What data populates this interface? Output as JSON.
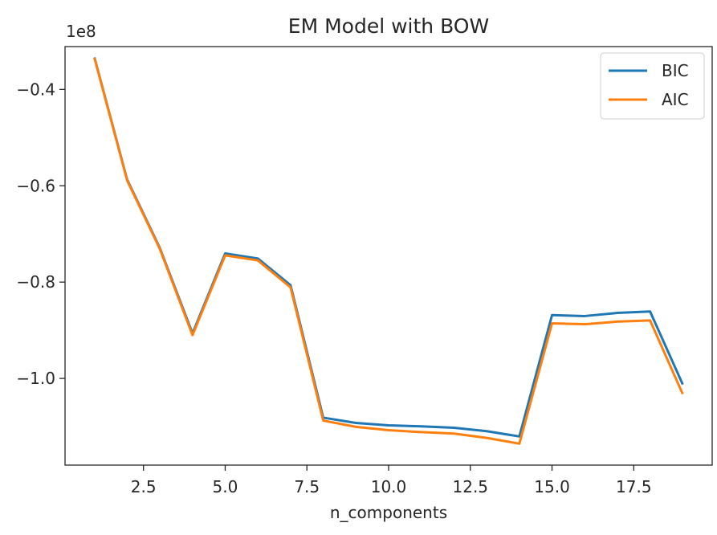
{
  "chart_data": {
    "type": "line",
    "title": "EM Model with BOW",
    "xlabel": "n_components",
    "ylabel": "",
    "y_offset_text": "1e8",
    "x": [
      1,
      2,
      3,
      4,
      5,
      6,
      7,
      8,
      9,
      10,
      11,
      12,
      13,
      14,
      15,
      16,
      17,
      18,
      19
    ],
    "xlim": [
      0.1,
      19.9
    ],
    "ylim": [
      -1.18,
      -0.311
    ],
    "x_ticks": [
      2.5,
      5.0,
      7.5,
      10.0,
      12.5,
      15.0,
      17.5
    ],
    "x_tick_labels": [
      "2.5",
      "5.0",
      "7.5",
      "10.0",
      "12.5",
      "15.0",
      "17.5"
    ],
    "y_ticks": [
      -0.4,
      -0.6,
      -0.8,
      -1.0
    ],
    "y_tick_labels": [
      "−0.4",
      "−0.6",
      "−0.8",
      "−1.0"
    ],
    "grid": false,
    "legend_position": "top-right",
    "series": [
      {
        "name": "BIC",
        "color": "#1f77b4",
        "values": [
          -0.3335,
          -0.587,
          -0.729,
          -0.9065,
          -0.7405,
          -0.751,
          -0.8065,
          -1.0815,
          -1.0925,
          -1.0975,
          -1.0995,
          -1.1025,
          -1.1095,
          -1.1205,
          -0.8685,
          -0.8705,
          -0.864,
          -0.861,
          -1.0125
        ]
      },
      {
        "name": "AIC",
        "color": "#ff7f0e",
        "values": [
          -0.3345,
          -0.589,
          -0.731,
          -0.91,
          -0.7445,
          -0.755,
          -0.811,
          -1.0875,
          -1.1005,
          -1.1075,
          -1.1115,
          -1.1145,
          -1.1235,
          -1.1355,
          -0.8855,
          -0.8875,
          -0.882,
          -0.8795,
          -1.0325
        ]
      }
    ]
  }
}
